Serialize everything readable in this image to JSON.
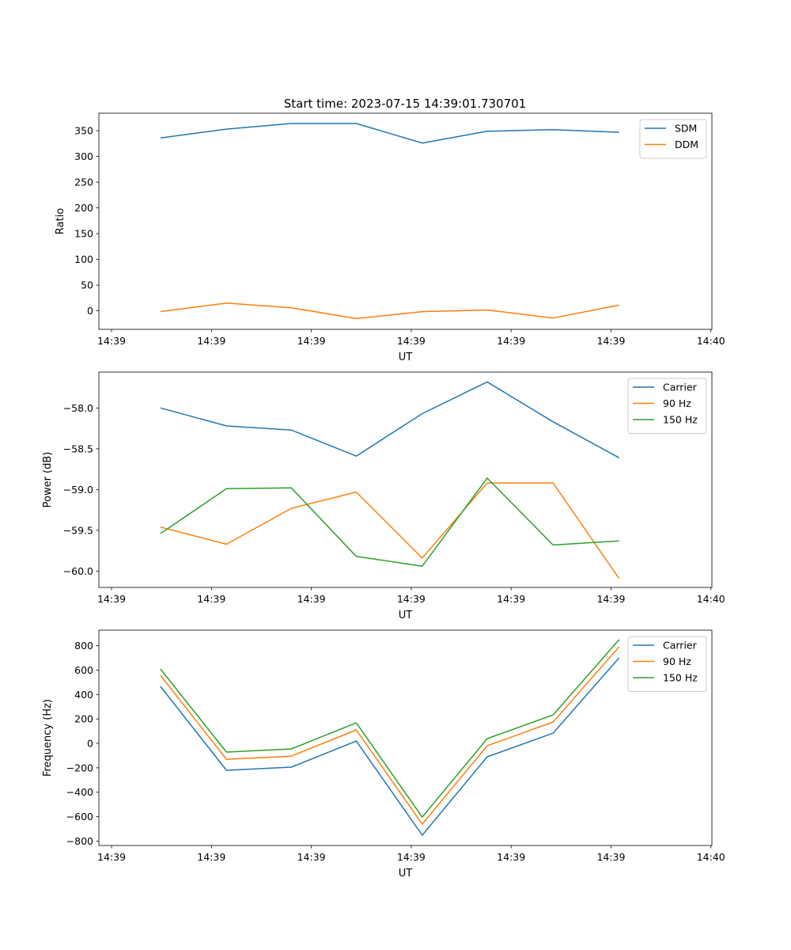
{
  "figure": {
    "title": "Start time: 2023-07-15 14:39:01.730701"
  },
  "chart_data": [
    {
      "type": "line",
      "title": "Start time: 2023-07-15 14:39:01.730701",
      "xlabel": "UT",
      "ylabel": "Ratio",
      "x": [
        4.9,
        11.5,
        18.0,
        24.5,
        31.1,
        37.6,
        44.2,
        50.8
      ],
      "xlim": [
        -1.27,
        60.1
      ],
      "xticks": [
        0,
        10,
        20,
        30,
        40,
        50,
        60
      ],
      "xtick_labels": [
        "14:39",
        "14:39",
        "14:39",
        "14:39",
        "14:39",
        "14:39",
        "14:40"
      ],
      "ylim": [
        -36,
        384
      ],
      "yticks": [
        0,
        50,
        100,
        150,
        200,
        250,
        300,
        350
      ],
      "ytick_labels": [
        "0",
        "50",
        "100",
        "150",
        "200",
        "250",
        "300",
        "350"
      ],
      "legend": "top-right",
      "series": [
        {
          "name": "SDM",
          "color": "#1f77b4",
          "values": [
            336,
            353,
            364,
            364,
            326,
            349,
            352,
            347
          ]
        },
        {
          "name": "DDM",
          "color": "#ff7f0e",
          "values": [
            -1.5,
            15,
            6,
            -15,
            -1.5,
            1.5,
            -14,
            11
          ]
        }
      ]
    },
    {
      "type": "line",
      "xlabel": "UT",
      "ylabel": "Power (dB)",
      "x": [
        4.9,
        11.5,
        18.0,
        24.5,
        31.1,
        37.6,
        44.2,
        50.8
      ],
      "xlim": [
        -1.27,
        60.1
      ],
      "xticks": [
        0,
        10,
        20,
        30,
        40,
        50,
        60
      ],
      "xtick_labels": [
        "14:39",
        "14:39",
        "14:39",
        "14:39",
        "14:39",
        "14:39",
        "14:40"
      ],
      "ylim": [
        -60.2,
        -57.56
      ],
      "yticks": [
        -60.0,
        -59.5,
        -59.0,
        -58.5,
        -58.0
      ],
      "ytick_labels": [
        "−60.0",
        "−59.5",
        "−59.0",
        "−58.5",
        "−58.0"
      ],
      "legend": "top-right",
      "series": [
        {
          "name": "Carrier",
          "color": "#1f77b4",
          "values": [
            -58.0,
            -58.22,
            -58.27,
            -58.59,
            -58.07,
            -57.68,
            -58.17,
            -58.61
          ]
        },
        {
          "name": "90 Hz",
          "color": "#ff7f0e",
          "values": [
            -59.46,
            -59.67,
            -59.23,
            -59.03,
            -59.84,
            -58.92,
            -58.92,
            -60.09
          ]
        },
        {
          "name": "150 Hz",
          "color": "#2ca02c",
          "values": [
            -59.54,
            -58.99,
            -58.98,
            -59.82,
            -59.94,
            -58.86,
            -59.68,
            -59.63
          ]
        }
      ]
    },
    {
      "type": "line",
      "xlabel": "UT",
      "ylabel": "Frequency (Hz)",
      "x": [
        4.9,
        11.5,
        18.0,
        24.5,
        31.1,
        37.6,
        44.2,
        50.8
      ],
      "xlim": [
        -1.27,
        60.1
      ],
      "xticks": [
        0,
        10,
        20,
        30,
        40,
        50,
        60
      ],
      "xtick_labels": [
        "14:39",
        "14:39",
        "14:39",
        "14:39",
        "14:39",
        "14:39",
        "14:40"
      ],
      "ylim": [
        -836,
        927
      ],
      "yticks": [
        -800,
        -600,
        -400,
        -200,
        0,
        200,
        400,
        600,
        800
      ],
      "ytick_labels": [
        "−800",
        "−600",
        "−400",
        "−200",
        "0",
        "200",
        "400",
        "600",
        "800"
      ],
      "legend": "top-right",
      "series": [
        {
          "name": "Carrier",
          "color": "#1f77b4",
          "values": [
            466,
            -220,
            -194,
            19,
            -752,
            -110,
            84,
            700
          ]
        },
        {
          "name": "90 Hz",
          "color": "#ff7f0e",
          "values": [
            557,
            -130,
            -104,
            110,
            -661,
            -19,
            175,
            790
          ]
        },
        {
          "name": "150 Hz",
          "color": "#2ca02c",
          "values": [
            609,
            -71,
            -45,
            168,
            -603,
            39,
            233,
            849
          ]
        }
      ]
    }
  ]
}
